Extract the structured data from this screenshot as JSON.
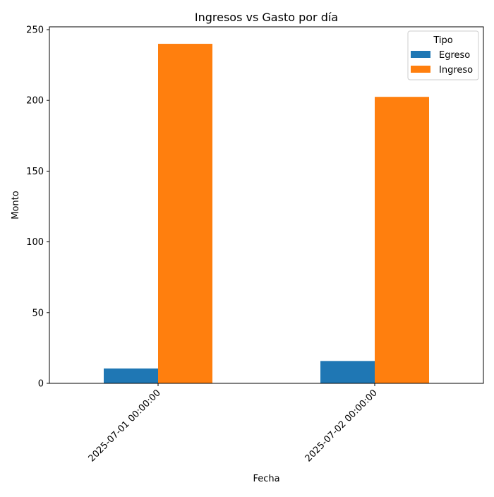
{
  "chart_data": {
    "type": "bar",
    "title": "Ingresos vs Gasto por día",
    "xlabel": "Fecha",
    "ylabel": "Monto",
    "categories": [
      "2025-07-01 00:00:00",
      "2025-07-02 00:00:00"
    ],
    "series": [
      {
        "name": "Egreso",
        "values": [
          10.5,
          15.8
        ],
        "color": "#1f77b4"
      },
      {
        "name": "Ingreso",
        "values": [
          240.0,
          202.5
        ],
        "color": "#ff7f0e"
      }
    ],
    "ylim": [
      0,
      252
    ],
    "yticks": [
      0,
      50,
      100,
      150,
      200,
      250
    ],
    "grid": false,
    "legend": {
      "title": "Tipo",
      "placement": "top-right"
    }
  }
}
